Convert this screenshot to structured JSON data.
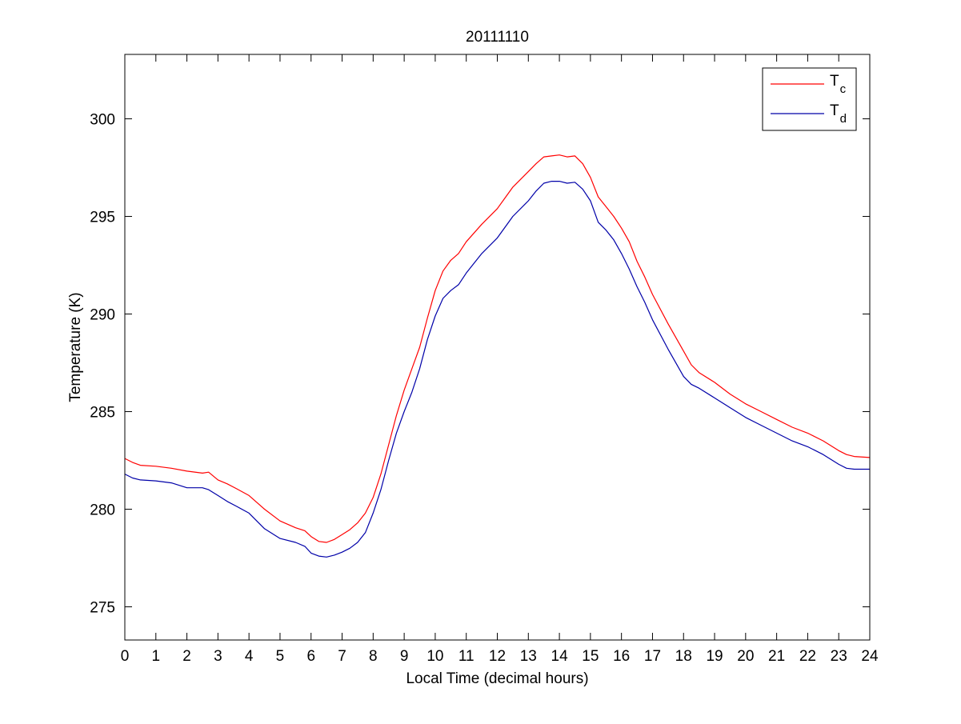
{
  "chart_data": {
    "type": "line",
    "title": "20111110",
    "xlabel": "Local Time (decimal hours)",
    "ylabel": "Temperature (K)",
    "xlim": [
      0,
      24
    ],
    "ylim": [
      273.3,
      303.3
    ],
    "xticks": [
      0,
      1,
      2,
      3,
      4,
      5,
      6,
      7,
      8,
      9,
      10,
      11,
      12,
      13,
      14,
      15,
      16,
      17,
      18,
      19,
      20,
      21,
      22,
      23,
      24
    ],
    "yticks": [
      275,
      280,
      285,
      290,
      295,
      300
    ],
    "grid": false,
    "legend_position": "top-right",
    "series": [
      {
        "name_base": "T",
        "name_sub": "c",
        "color": "#ff0000",
        "x": [
          0,
          0.25,
          0.5,
          1,
          1.5,
          2,
          2.5,
          2.7,
          3,
          3.3,
          3.6,
          4,
          4.5,
          5,
          5.5,
          5.8,
          6,
          6.25,
          6.5,
          6.75,
          7,
          7.25,
          7.5,
          7.75,
          8,
          8.25,
          8.5,
          8.75,
          9,
          9.25,
          9.5,
          9.75,
          10,
          10.25,
          10.5,
          10.75,
          11,
          11.5,
          12,
          12.5,
          13,
          13.25,
          13.5,
          13.75,
          14,
          14.25,
          14.5,
          14.75,
          15,
          15.25,
          15.5,
          15.75,
          16,
          16.25,
          16.5,
          16.75,
          17,
          17.5,
          18,
          18.25,
          18.5,
          19,
          19.5,
          20,
          20.5,
          21,
          21.5,
          22,
          22.5,
          23,
          23.25,
          23.5,
          24
        ],
        "y": [
          282.6,
          282.4,
          282.25,
          282.2,
          282.1,
          281.95,
          281.85,
          281.9,
          281.5,
          281.3,
          281.05,
          280.7,
          280.0,
          279.4,
          279.05,
          278.9,
          278.6,
          278.35,
          278.3,
          278.45,
          278.7,
          278.95,
          279.3,
          279.8,
          280.6,
          281.8,
          283.3,
          284.8,
          286.1,
          287.2,
          288.3,
          289.8,
          291.2,
          292.2,
          292.75,
          293.1,
          293.7,
          294.6,
          295.4,
          296.5,
          297.3,
          297.7,
          298.05,
          298.1,
          298.15,
          298.05,
          298.1,
          297.7,
          297.0,
          296.0,
          295.5,
          295.0,
          294.4,
          293.7,
          292.7,
          291.9,
          291.0,
          289.5,
          288.1,
          287.4,
          287.0,
          286.5,
          285.9,
          285.4,
          285.0,
          284.6,
          284.2,
          283.9,
          283.5,
          283.0,
          282.8,
          282.7,
          282.65
        ]
      },
      {
        "name_base": "T",
        "name_sub": "d",
        "color": "#0000a8",
        "x": [
          0,
          0.25,
          0.5,
          1,
          1.5,
          2,
          2.5,
          2.7,
          3,
          3.3,
          3.6,
          4,
          4.5,
          5,
          5.5,
          5.8,
          6,
          6.25,
          6.5,
          6.75,
          7,
          7.25,
          7.5,
          7.75,
          8,
          8.25,
          8.5,
          8.75,
          9,
          9.25,
          9.5,
          9.75,
          10,
          10.25,
          10.5,
          10.75,
          11,
          11.5,
          12,
          12.5,
          13,
          13.25,
          13.5,
          13.75,
          14,
          14.25,
          14.5,
          14.75,
          15,
          15.25,
          15.5,
          15.75,
          16,
          16.25,
          16.5,
          16.75,
          17,
          17.5,
          18,
          18.25,
          18.5,
          19,
          19.5,
          20,
          20.5,
          21,
          21.5,
          22,
          22.5,
          23,
          23.25,
          23.5,
          24
        ],
        "y": [
          281.8,
          281.6,
          281.5,
          281.45,
          281.35,
          281.1,
          281.1,
          281.0,
          280.7,
          280.4,
          280.15,
          279.8,
          279.0,
          278.5,
          278.3,
          278.1,
          277.75,
          277.6,
          277.55,
          277.65,
          277.8,
          278.0,
          278.3,
          278.8,
          279.8,
          281.0,
          282.5,
          283.9,
          285.0,
          286.0,
          287.2,
          288.7,
          289.9,
          290.8,
          291.2,
          291.5,
          292.1,
          293.1,
          293.9,
          295.0,
          295.8,
          296.3,
          296.7,
          296.8,
          296.8,
          296.7,
          296.75,
          296.4,
          295.8,
          294.7,
          294.3,
          293.8,
          293.1,
          292.3,
          291.4,
          290.6,
          289.7,
          288.2,
          286.8,
          286.4,
          286.2,
          285.7,
          285.2,
          284.7,
          284.3,
          283.9,
          283.5,
          283.2,
          282.8,
          282.3,
          282.1,
          282.05,
          282.05
        ]
      }
    ]
  }
}
